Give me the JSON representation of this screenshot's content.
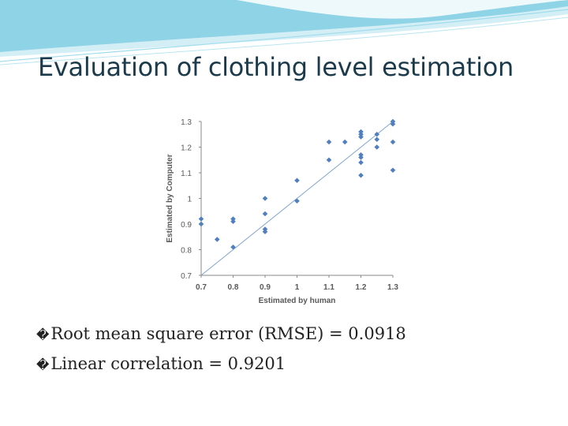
{
  "slide": {
    "title": "Evaluation of clothing level estimation",
    "bullets": [
      {
        "glyph": "�",
        "text": "Root mean square error (RMSE) =  0.0918"
      },
      {
        "glyph": "�",
        "text": "Linear correlation = 0.9201"
      }
    ]
  },
  "colors": {
    "swoosh_main": "#8fd3e6",
    "swoosh_light": "#d4eef6",
    "markers": "#4f7fbf",
    "trendline": "#7ea3cf",
    "title_text": "#1b3a4b"
  },
  "chart_data": {
    "type": "scatter",
    "xlabel": "Estimated by human",
    "ylabel": "Estimated by Computer",
    "xlim": [
      0.7,
      1.3
    ],
    "ylim": [
      0.7,
      1.3
    ],
    "x_ticks": [
      "0.7",
      "0.8",
      "0.9",
      "1",
      "1.1",
      "1.2",
      "1.3"
    ],
    "y_ticks": [
      "0.7",
      "0.8",
      "0.9",
      "1",
      "1.1",
      "1.2",
      "1.3"
    ],
    "grid": false,
    "legend": "none",
    "trendline": {
      "from": [
        0.7,
        0.7
      ],
      "to": [
        1.3,
        1.3
      ]
    },
    "series": [
      {
        "points": [
          [
            0.7,
            0.9
          ],
          [
            0.7,
            0.92
          ],
          [
            0.75,
            0.84
          ],
          [
            0.8,
            0.81
          ],
          [
            0.8,
            0.91
          ],
          [
            0.8,
            0.92
          ],
          [
            0.9,
            0.87
          ],
          [
            0.9,
            0.88
          ],
          [
            0.9,
            0.94
          ],
          [
            0.9,
            1.0
          ],
          [
            1.0,
            0.99
          ],
          [
            1.0,
            1.07
          ],
          [
            1.1,
            1.15
          ],
          [
            1.1,
            1.22
          ],
          [
            1.15,
            1.22
          ],
          [
            1.2,
            1.09
          ],
          [
            1.2,
            1.14
          ],
          [
            1.2,
            1.16
          ],
          [
            1.2,
            1.17
          ],
          [
            1.2,
            1.24
          ],
          [
            1.2,
            1.25
          ],
          [
            1.2,
            1.26
          ],
          [
            1.25,
            1.2
          ],
          [
            1.25,
            1.23
          ],
          [
            1.25,
            1.25
          ],
          [
            1.3,
            1.11
          ],
          [
            1.3,
            1.22
          ],
          [
            1.3,
            1.29
          ],
          [
            1.3,
            1.3
          ]
        ]
      }
    ]
  }
}
